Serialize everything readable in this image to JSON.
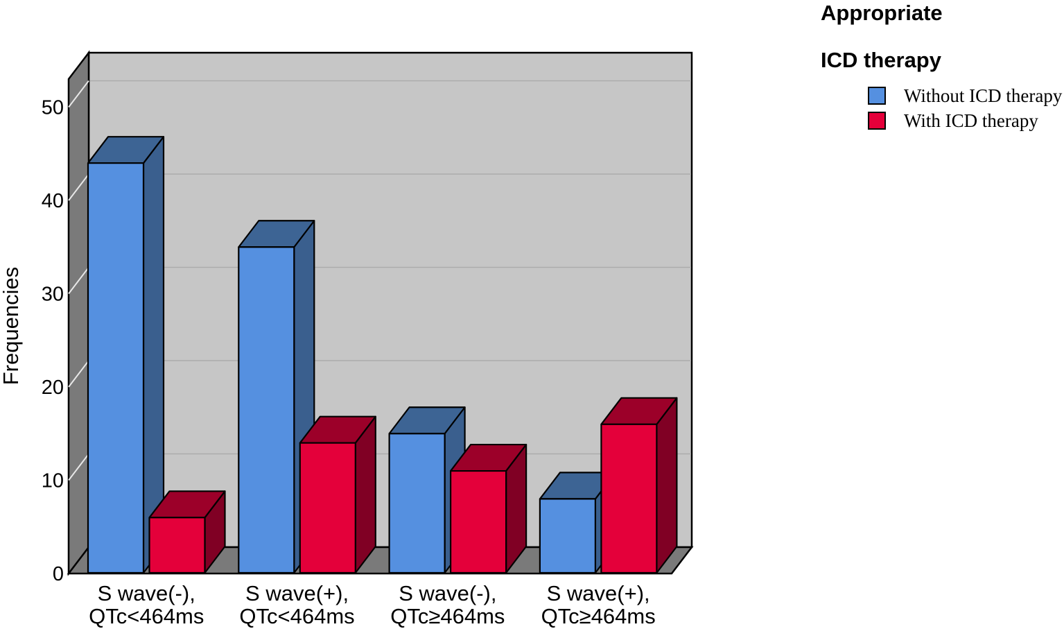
{
  "chart_data": {
    "type": "bar",
    "style": "3d-grouped",
    "title": "",
    "xlabel": "",
    "ylabel": "Frequencies",
    "ylim": [
      0,
      53
    ],
    "yticks": [
      0,
      10,
      20,
      30,
      40,
      50
    ],
    "grid": true,
    "categories": [
      [
        "S wave(-),",
        "QTc<464ms"
      ],
      [
        "S wave(+),",
        "QTc<464ms"
      ],
      [
        "S wave(-),",
        "QTc≥464ms"
      ],
      [
        "S wave(+),",
        "QTc≥464ms"
      ]
    ],
    "series": [
      {
        "name": "Without ICD therapy",
        "values": [
          44,
          35,
          15,
          8
        ],
        "color": "#5590e0",
        "color_top": "#3d6494",
        "color_side": "#3a5f8e"
      },
      {
        "name": "With ICD therapy",
        "values": [
          6,
          14,
          11,
          16
        ],
        "color": "#e4003a",
        "color_top": "#9c0029",
        "color_side": "#800024"
      }
    ],
    "legend": {
      "title_line1": "Appropriate",
      "title_line2": "ICD therapy",
      "position": "top-right"
    },
    "colors": {
      "back_wall": "#c6c6c6",
      "side_wall": "#7a7a7a",
      "floor": "#7a7a7a",
      "gridline": "#ababab",
      "wall_tick": "#e8e8e8",
      "outline": "#000000",
      "text": "#000000"
    }
  }
}
